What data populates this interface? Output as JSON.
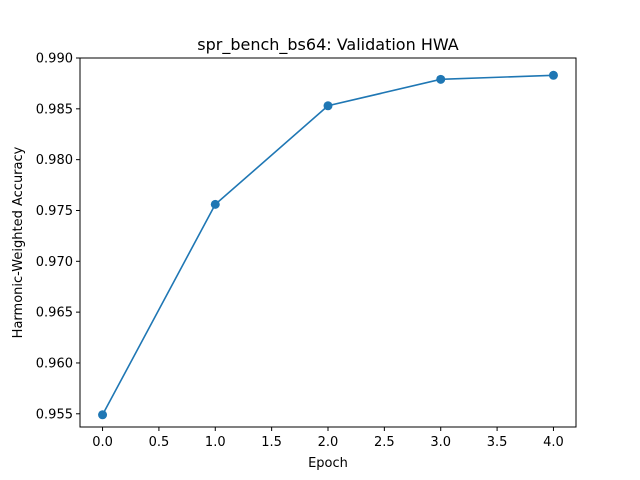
{
  "chart_data": {
    "type": "line",
    "title": "spr_bench_bs64: Validation HWA",
    "xlabel": "Epoch",
    "ylabel": "Harmonic-Weighted Accuracy",
    "xlim": [
      -0.2,
      4.2
    ],
    "ylim": [
      0.9537,
      0.99
    ],
    "xticks": [
      0.0,
      0.5,
      1.0,
      1.5,
      2.0,
      2.5,
      3.0,
      3.5,
      4.0
    ],
    "xtick_labels": [
      "0.0",
      "0.5",
      "1.0",
      "1.5",
      "2.0",
      "2.5",
      "3.0",
      "3.5",
      "4.0"
    ],
    "yticks": [
      0.955,
      0.96,
      0.965,
      0.97,
      0.975,
      0.98,
      0.985,
      0.99
    ],
    "ytick_labels": [
      "0.955",
      "0.960",
      "0.965",
      "0.970",
      "0.975",
      "0.980",
      "0.985",
      "0.990"
    ],
    "grid": false,
    "series": [
      {
        "color": "#1f77b4",
        "marker": "circle",
        "x": [
          0,
          1,
          2,
          3,
          4
        ],
        "y": [
          0.9549,
          0.9756,
          0.9853,
          0.9879,
          0.9883
        ]
      }
    ]
  }
}
